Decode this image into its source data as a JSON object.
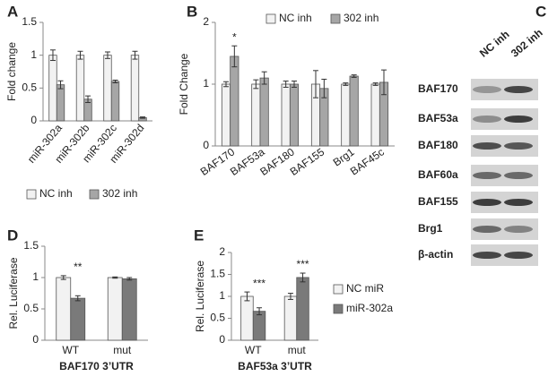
{
  "chart_data": [
    {
      "type": "bar",
      "panel": "A",
      "y_label": "Fold change",
      "categories": [
        "miR-302a",
        "miR-302b",
        "miR-302c",
        "miR-302d"
      ],
      "series": [
        {
          "name": "NC inh",
          "color": "#f2f2f2",
          "values": [
            1,
            1,
            1,
            1
          ],
          "errors": [
            0.08,
            0.06,
            0.05,
            0.06
          ]
        },
        {
          "name": "302 inh",
          "color": "#a6a6a6",
          "values": [
            0.55,
            0.33,
            0.6,
            0.05
          ],
          "errors": [
            0.06,
            0.05,
            0.02,
            0.01
          ]
        }
      ],
      "ylim": [
        0,
        1.5
      ],
      "yticks": [
        0,
        0.5,
        1,
        1.5
      ],
      "legend": "below"
    },
    {
      "type": "bar",
      "panel": "B",
      "y_label": "Fold Change",
      "categories": [
        "BAF170",
        "BAF53a",
        "BAF180",
        "BAF155",
        "Brg1",
        "BAF45c"
      ],
      "series": [
        {
          "name": "NC inh",
          "color": "#f2f2f2",
          "values": [
            1,
            1,
            1,
            1,
            1,
            1
          ],
          "errors": [
            0.04,
            0.07,
            0.05,
            0.22,
            0.02,
            0.02
          ]
        },
        {
          "name": "302 inh",
          "color": "#a6a6a6",
          "values": [
            1.45,
            1.1,
            1,
            0.93,
            1.13,
            1.03
          ],
          "errors": [
            0.17,
            0.1,
            0.05,
            0.15,
            0.02,
            0.2
          ]
        }
      ],
      "annotations": [
        {
          "text": "*",
          "x": "BAF170"
        }
      ],
      "ylim": [
        0,
        2
      ],
      "yticks": [
        0,
        1,
        2
      ],
      "legend": "top"
    },
    {
      "type": "bar",
      "panel": "D",
      "y_label": "Rel. Luciferase",
      "x_label": "BAF170 3’UTR",
      "categories": [
        "WT",
        "mut"
      ],
      "series": [
        {
          "name": "NC miR",
          "color": "#f2f2f2",
          "values": [
            1,
            1
          ],
          "errors": [
            0.03,
            0.01
          ]
        },
        {
          "name": "miR-302a",
          "color": "#7a7a7a",
          "values": [
            0.67,
            0.98
          ],
          "errors": [
            0.04,
            0.02
          ]
        }
      ],
      "annotations": [
        {
          "text": "**",
          "x": "WT"
        }
      ],
      "ylim": [
        0,
        1.5
      ],
      "yticks": [
        0,
        0.5,
        1,
        1.5
      ],
      "legend": "none"
    },
    {
      "type": "bar",
      "panel": "E",
      "y_label": "Rel. Luciferase",
      "x_label": "BAF53a 3’UTR",
      "categories": [
        "WT",
        "mut"
      ],
      "series": [
        {
          "name": "NC miR",
          "color": "#f2f2f2",
          "values": [
            1,
            1
          ],
          "errors": [
            0.1,
            0.07
          ]
        },
        {
          "name": "miR-302a",
          "color": "#7a7a7a",
          "values": [
            0.66,
            1.43
          ],
          "errors": [
            0.08,
            0.1
          ]
        }
      ],
      "annotations": [
        {
          "text": "***",
          "x": "WT"
        },
        {
          "text": "***",
          "x": "mut"
        }
      ],
      "ylim": [
        0,
        2
      ],
      "yticks": [
        0,
        0.5,
        1,
        1.5,
        2
      ],
      "legend": "right"
    }
  ],
  "blot": {
    "panel": "C",
    "lanes": [
      "NC inh",
      "302 inh"
    ],
    "rows": [
      "BAF170",
      "BAF53a",
      "BAF180",
      "BAF60a",
      "BAF155",
      "Brg1",
      "β-actin"
    ]
  }
}
